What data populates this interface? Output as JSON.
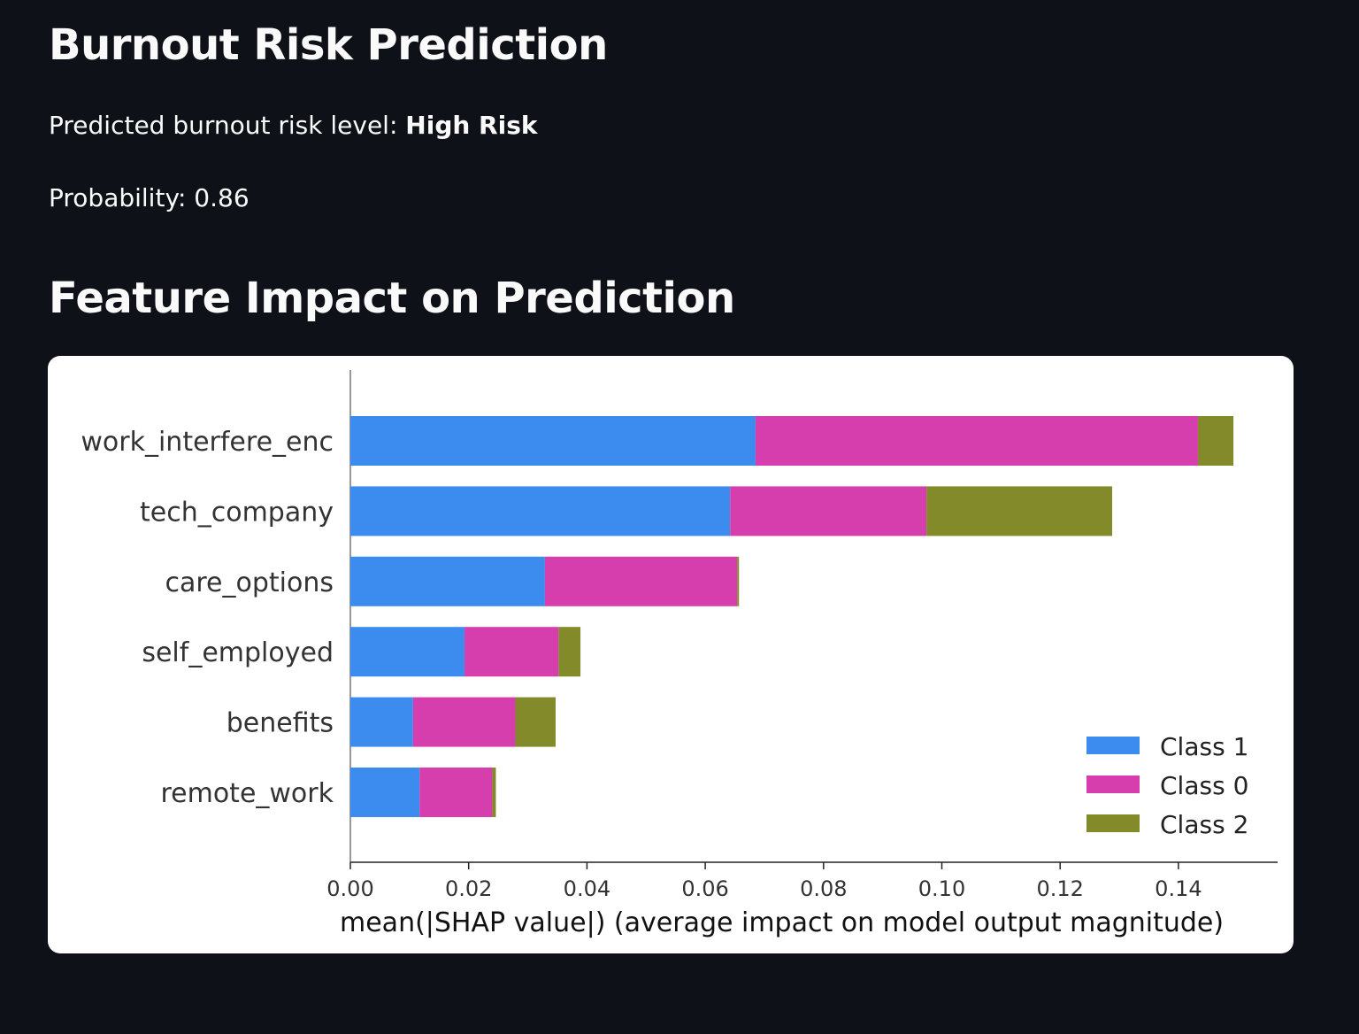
{
  "page": {
    "title": "Burnout Risk Prediction",
    "prediction_prefix": "Predicted burnout risk level: ",
    "prediction_value": "High Risk",
    "probability_text": "Probability: 0.86",
    "section_title": "Feature Impact on Prediction"
  },
  "chart_data": {
    "type": "bar",
    "orientation": "horizontal",
    "stacked": true,
    "categories": [
      "work_interfere_enc",
      "tech_company",
      "care_options",
      "self_employed",
      "benefits",
      "remote_work"
    ],
    "series": [
      {
        "name": "Class 1",
        "color": "#3c8cf0",
        "values": [
          0.0685,
          0.0642,
          0.0329,
          0.0193,
          0.0106,
          0.0117
        ]
      },
      {
        "name": "Class 0",
        "color": "#d63ead",
        "values": [
          0.0748,
          0.0332,
          0.0325,
          0.0159,
          0.0173,
          0.0123
        ]
      },
      {
        "name": "Class 2",
        "color": "#828a29",
        "values": [
          0.006,
          0.0314,
          0.0003,
          0.0037,
          0.0068,
          0.0006
        ]
      }
    ],
    "xlabel": "mean(|SHAP value|) (average impact on model output magnitude)",
    "ylabel": "",
    "xticks": [
      "0.00",
      "0.02",
      "0.04",
      "0.06",
      "0.08",
      "0.10",
      "0.12",
      "0.14"
    ],
    "xlim": [
      0,
      0.1568
    ],
    "legend_position": "lower-right",
    "grid": false
  }
}
